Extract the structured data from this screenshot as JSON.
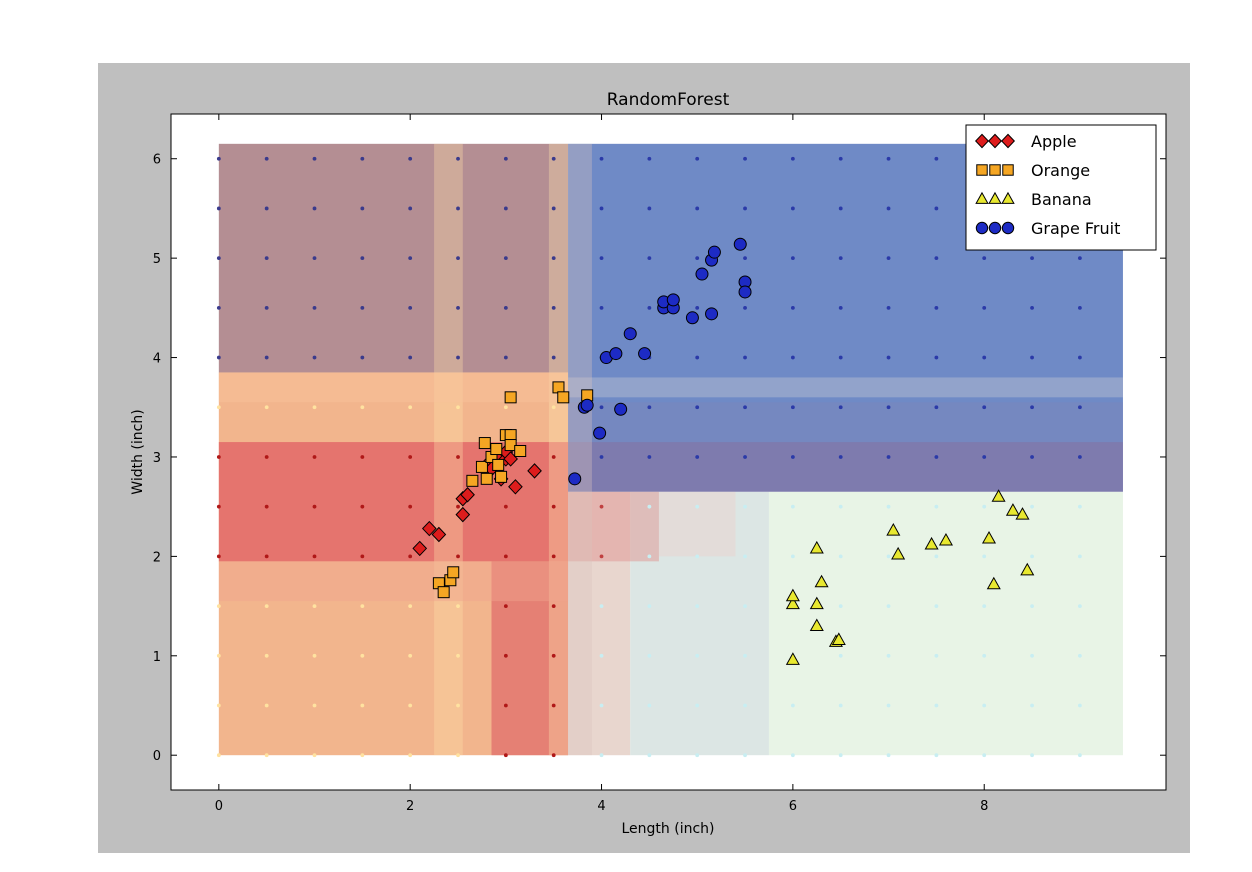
{
  "chart_data": {
    "type": "scatter",
    "title": "RandomForest",
    "xlabel": "Length (inch)",
    "ylabel": "Width (inch)",
    "xlim": [
      -0.5,
      9.9
    ],
    "ylim": [
      -0.35,
      6.45
    ],
    "xticks": [
      "0",
      "2",
      "4",
      "6",
      "8"
    ],
    "xtick_values": [
      0,
      2,
      4,
      6,
      8
    ],
    "yticks": [
      "0",
      "1",
      "2",
      "3",
      "4",
      "5",
      "6"
    ],
    "ytick_values": [
      0,
      1,
      2,
      3,
      4,
      5,
      6
    ],
    "legend_position": "top-right",
    "colors": {
      "apple": "#dd1c1c",
      "orange": "#f5a623",
      "banana": "#e8e830",
      "grape": "#1d2bc4",
      "region_apple": "#e36868",
      "region_orange": "#f2b58d",
      "region_banana": "#e8f4e6",
      "region_grape": "#6f8ac6",
      "region_mixed_top": "#b48e93"
    },
    "series": [
      {
        "name": "Apple",
        "marker": "diamond",
        "points": [
          [
            2.1,
            2.08
          ],
          [
            2.2,
            2.28
          ],
          [
            2.3,
            2.22
          ],
          [
            2.55,
            2.42
          ],
          [
            2.55,
            2.58
          ],
          [
            2.6,
            2.62
          ],
          [
            2.8,
            2.92
          ],
          [
            2.85,
            2.88
          ],
          [
            2.9,
            3.0
          ],
          [
            2.95,
            2.78
          ],
          [
            3.0,
            2.98
          ],
          [
            3.0,
            3.05
          ],
          [
            3.05,
            2.98
          ],
          [
            3.1,
            2.7
          ],
          [
            3.3,
            2.86
          ]
        ]
      },
      {
        "name": "Orange",
        "marker": "square",
        "points": [
          [
            2.3,
            1.73
          ],
          [
            2.35,
            1.64
          ],
          [
            2.42,
            1.76
          ],
          [
            2.45,
            1.84
          ],
          [
            2.65,
            2.76
          ],
          [
            2.75,
            2.9
          ],
          [
            2.78,
            3.14
          ],
          [
            2.8,
            2.78
          ],
          [
            2.85,
            3.0
          ],
          [
            2.9,
            3.08
          ],
          [
            2.92,
            2.92
          ],
          [
            2.95,
            2.8
          ],
          [
            3.0,
            3.22
          ],
          [
            3.05,
            3.22
          ],
          [
            3.05,
            3.12
          ],
          [
            3.15,
            3.06
          ],
          [
            3.05,
            3.6
          ],
          [
            3.55,
            3.7
          ],
          [
            3.6,
            3.6
          ],
          [
            3.85,
            3.62
          ]
        ]
      },
      {
        "name": "Banana",
        "marker": "triangle",
        "points": [
          [
            6.0,
            0.96
          ],
          [
            6.0,
            1.52
          ],
          [
            6.0,
            1.6
          ],
          [
            6.25,
            1.3
          ],
          [
            6.25,
            1.52
          ],
          [
            6.25,
            2.08
          ],
          [
            6.3,
            1.74
          ],
          [
            6.45,
            1.14
          ],
          [
            6.48,
            1.16
          ],
          [
            7.05,
            2.26
          ],
          [
            7.1,
            2.02
          ],
          [
            7.45,
            2.12
          ],
          [
            7.6,
            2.16
          ],
          [
            8.05,
            2.18
          ],
          [
            8.1,
            1.72
          ],
          [
            8.15,
            2.6
          ],
          [
            8.3,
            2.46
          ],
          [
            8.4,
            2.42
          ],
          [
            8.45,
            1.86
          ]
        ]
      },
      {
        "name": "Grape Fruit",
        "marker": "circle",
        "points": [
          [
            3.72,
            2.78
          ],
          [
            3.82,
            3.5
          ],
          [
            3.85,
            3.52
          ],
          [
            3.98,
            3.24
          ],
          [
            4.05,
            4.0
          ],
          [
            4.15,
            4.04
          ],
          [
            4.2,
            3.48
          ],
          [
            4.3,
            4.24
          ],
          [
            4.45,
            4.04
          ],
          [
            4.65,
            4.5
          ],
          [
            4.65,
            4.56
          ],
          [
            4.75,
            4.5
          ],
          [
            4.75,
            4.58
          ],
          [
            4.95,
            4.4
          ],
          [
            5.05,
            4.84
          ],
          [
            5.15,
            4.44
          ],
          [
            5.15,
            4.98
          ],
          [
            5.18,
            5.06
          ],
          [
            5.45,
            5.14
          ],
          [
            5.5,
            4.76
          ],
          [
            5.5,
            4.66
          ]
        ]
      }
    ]
  }
}
